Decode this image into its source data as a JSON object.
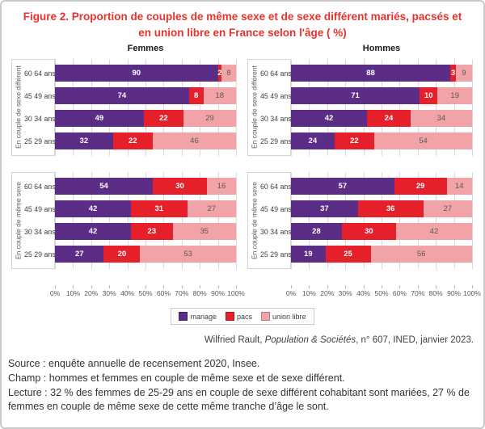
{
  "title": "Figure 2. Proportion de couples de même sexe et de sexe différent mariés, pacsés et en union libre en France selon l'âge ( %)",
  "colors": {
    "title_red": "#e8322d",
    "mariage": "#5b2d87",
    "pacs": "#e6202a",
    "union_libre": "#f2a3a8",
    "gridline": "#d9d9d9",
    "border": "#c9c9c9"
  },
  "chart_data": {
    "type": "bar",
    "stacked": true,
    "orientation": "horizontal",
    "xlim": [
      0,
      100
    ],
    "x_ticks": [
      "0%",
      "10%",
      "20%",
      "30%",
      "40%",
      "50%",
      "60%",
      "70%",
      "80%",
      "90%",
      "100%"
    ],
    "grid": true,
    "legend_position": "bottom-center",
    "legend": [
      {
        "label": "mariage",
        "color": "#5b2d87"
      },
      {
        "label": "pacs",
        "color": "#e6202a"
      },
      {
        "label": "union libre",
        "color": "#f2a3a8"
      }
    ],
    "panels": [
      {
        "title": "Femmes",
        "groups": [
          {
            "label": "En couple de sexe différent",
            "categories": [
              "60 64 ans",
              "45 49 ans",
              "30 34 ans",
              "25 29 ans"
            ],
            "series": [
              {
                "name": "mariage",
                "values": [
                  90,
                  74,
                  49,
                  32
                ]
              },
              {
                "name": "pacs",
                "values": [
                  2,
                  8,
                  22,
                  22
                ]
              },
              {
                "name": "union libre",
                "values": [
                  8,
                  18,
                  29,
                  46
                ]
              }
            ]
          },
          {
            "label": "En couple de même sexe",
            "categories": [
              "60 64 ans",
              "45 49 ans",
              "30 34 ans",
              "25 29 ans"
            ],
            "series": [
              {
                "name": "mariage",
                "values": [
                  54,
                  42,
                  42,
                  27
                ]
              },
              {
                "name": "pacs",
                "values": [
                  30,
                  31,
                  23,
                  20
                ]
              },
              {
                "name": "union libre",
                "values": [
                  16,
                  27,
                  35,
                  53
                ]
              }
            ]
          }
        ]
      },
      {
        "title": "Hommes",
        "groups": [
          {
            "label": "En couple de sexe différent",
            "categories": [
              "60 64 ans",
              "45 49 ans",
              "30 34 ans",
              "25 29 ans"
            ],
            "series": [
              {
                "name": "mariage",
                "values": [
                  88,
                  71,
                  42,
                  24
                ]
              },
              {
                "name": "pacs",
                "values": [
                  3,
                  10,
                  24,
                  22
                ]
              },
              {
                "name": "union libre",
                "values": [
                  9,
                  19,
                  34,
                  54
                ]
              }
            ]
          },
          {
            "label": "En couple de même sexe",
            "categories": [
              "60 64 ans",
              "45 49 ans",
              "30 34 ans",
              "25 29 ans"
            ],
            "series": [
              {
                "name": "mariage",
                "values": [
                  57,
                  37,
                  28,
                  19
                ]
              },
              {
                "name": "pacs",
                "values": [
                  29,
                  36,
                  30,
                  25
                ]
              },
              {
                "name": "union libre",
                "values": [
                  14,
                  27,
                  42,
                  56
                ]
              }
            ]
          }
        ]
      }
    ]
  },
  "attribution": {
    "pre": "Wilfried Rault, ",
    "italic": "Population & Sociétés",
    "post": ", n° 607, INED, janvier 2023."
  },
  "footer": {
    "source": "Source : enquête annuelle de recensement 2020, Insee.",
    "champ": "Champ : hommes et femmes en couple de même sexe et de sexe différent.",
    "lecture": "Lecture : 32 % des femmes de 25-29 ans en couple de sexe différent cohabitant sont mariées, 27 % de femmes en couple de même sexe de cette même tranche d’âge le sont."
  }
}
